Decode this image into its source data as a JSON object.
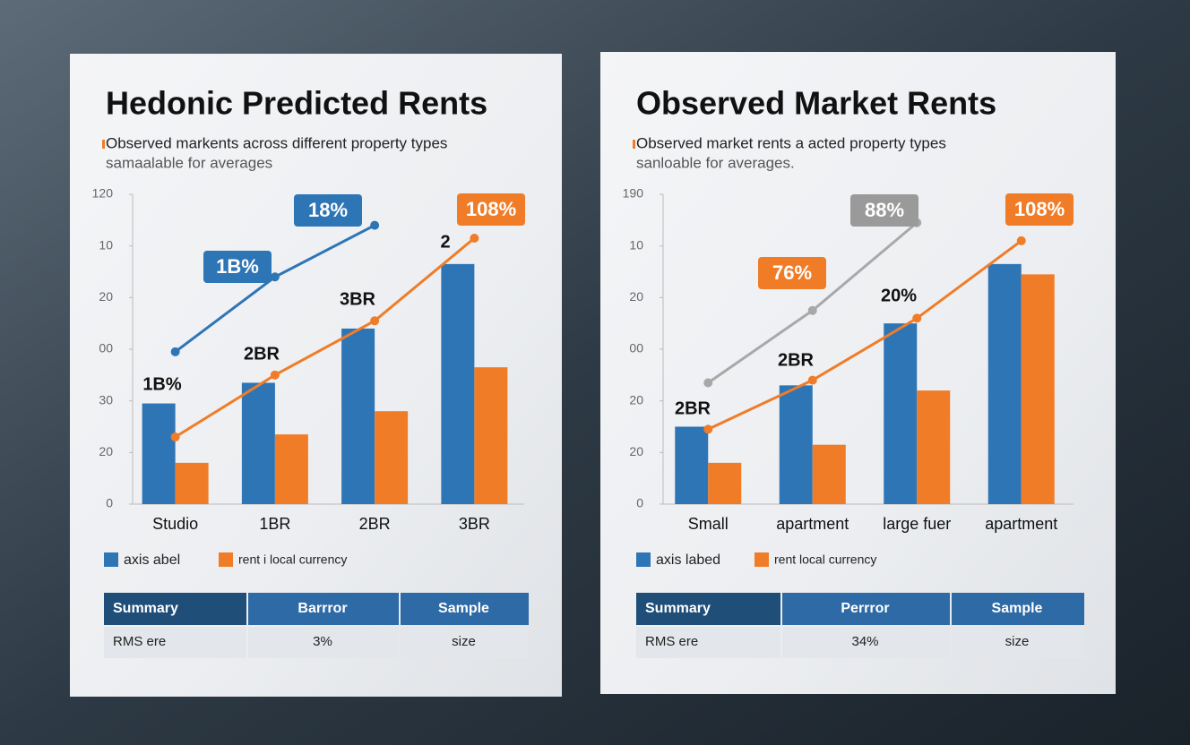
{
  "chart_data": [
    {
      "type": "bar",
      "title": "Hedonic Predicted Rents",
      "subtitle": [
        "Observed markents across different property types",
        "samaalable for averages"
      ],
      "categories": [
        "Studio",
        "1BR",
        "2BR",
        "3BR"
      ],
      "ylim": [
        0,
        120
      ],
      "yticks": [
        0,
        20,
        {
          "value": 40,
          "label": "30"
        },
        {
          "value": 60,
          "label": "00"
        },
        {
          "value": 80,
          "label": "20"
        },
        {
          "value": 100,
          "label": "10"
        },
        120
      ],
      "series": [
        {
          "name": "axis abel",
          "type": "bar",
          "color": "#2e75b6",
          "values": [
            39,
            47,
            68,
            93
          ]
        },
        {
          "name": "rent i local currency",
          "type": "bar",
          "color": "#f07c28",
          "values": [
            16,
            27,
            36,
            53
          ]
        },
        {
          "type": "line",
          "color": "#2e75b6",
          "values": [
            59,
            88,
            108,
            null
          ]
        },
        {
          "type": "line",
          "color": "#f07c28",
          "values": [
            26,
            50,
            71,
            103
          ]
        }
      ],
      "annotations": [
        {
          "text": "18%",
          "color": "#2e75b6",
          "box": true
        },
        {
          "text": "1B%",
          "color": "#2e75b6",
          "box": true
        },
        {
          "text": "108%",
          "color": "#f07c28",
          "box": true
        },
        {
          "text": "2",
          "color": "#111111",
          "box": false
        },
        {
          "text": "3BR",
          "color": "#111111",
          "box": false
        },
        {
          "text": "2BR",
          "color": "#111111",
          "box": false
        },
        {
          "text": "1B%",
          "color": "#111111",
          "box": false
        }
      ]
    },
    {
      "type": "bar",
      "title": "Observed Market Rents",
      "subtitle": [
        "Observed market rents a acted property types",
        "sanloable for averages."
      ],
      "categories": [
        "Small",
        "apartment",
        "large fuer",
        "apartment"
      ],
      "ylim": [
        0,
        120
      ],
      "yticks": [
        0,
        20,
        {
          "value": 40,
          "label": "20"
        },
        {
          "value": 60,
          "label": "00"
        },
        {
          "value": 80,
          "label": "20"
        },
        {
          "value": 100,
          "label": "10"
        },
        {
          "value": 120,
          "label": "190"
        }
      ],
      "series": [
        {
          "name": "axis labed",
          "type": "bar",
          "color": "#2e75b6",
          "values": [
            30,
            46,
            70,
            93
          ]
        },
        {
          "name": "rent local currency",
          "type": "bar",
          "color": "#f07c28",
          "values": [
            16,
            23,
            44,
            89
          ]
        },
        {
          "type": "line",
          "color": "#a8a8a8",
          "values": [
            47,
            75,
            109,
            null
          ]
        },
        {
          "type": "line",
          "color": "#f07c28",
          "values": [
            29,
            48,
            72,
            102
          ]
        }
      ],
      "annotations": [
        {
          "text": "88%",
          "color": "#9a9a9a",
          "box": true
        },
        {
          "text": "76%",
          "color": "#f07c28",
          "box": true
        },
        {
          "text": "108%",
          "color": "#f07c28",
          "box": true
        },
        {
          "text": "20%",
          "color": "#111111",
          "box": false
        },
        {
          "text": "2BR",
          "color": "#111111",
          "box": false
        },
        {
          "text": "2BR",
          "color": "#111111",
          "box": false
        }
      ]
    }
  ],
  "tables": [
    {
      "header": [
        "Summary",
        "Barrror",
        "Sample"
      ],
      "rows": [
        [
          "RMS ere",
          "3%",
          "size"
        ]
      ]
    },
    {
      "header": [
        "Summary",
        "Perrror",
        "Sample"
      ],
      "rows": [
        [
          "RMS ere",
          "34%",
          "size"
        ]
      ]
    }
  ]
}
